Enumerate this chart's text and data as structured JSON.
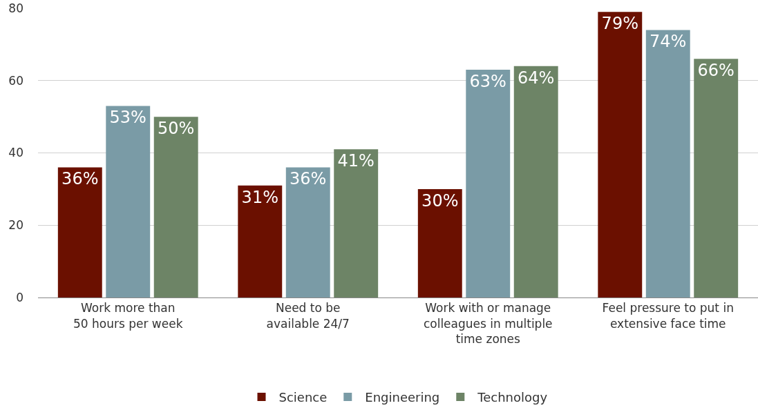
{
  "chart_data": {
    "type": "bar",
    "categories": [
      "Work more than\n50 hours per week",
      "Need to be\navailable 24/7",
      "Work with or manage\ncolleagues in multiple\ntime zones",
      "Feel pressure to put in\nextensive face time"
    ],
    "series": [
      {
        "name": "Science",
        "color": "#6b1000",
        "values": [
          36,
          31,
          30,
          79
        ],
        "value_labels": [
          "36%",
          "31%",
          "30%",
          "79%"
        ]
      },
      {
        "name": "Engineering",
        "color": "#7a9ba6",
        "values": [
          53,
          36,
          63,
          74
        ],
        "value_labels": [
          "53%",
          "36%",
          "63%",
          "74%"
        ]
      },
      {
        "name": "Technology",
        "color": "#6d8466",
        "values": [
          50,
          41,
          64,
          66
        ],
        "value_labels": [
          "50%",
          "41%",
          "64%",
          "66%"
        ]
      }
    ],
    "ylim": [
      0,
      80
    ],
    "yticks": [
      0,
      20,
      40,
      60,
      80
    ],
    "grid": "y",
    "legend": "bottom"
  }
}
